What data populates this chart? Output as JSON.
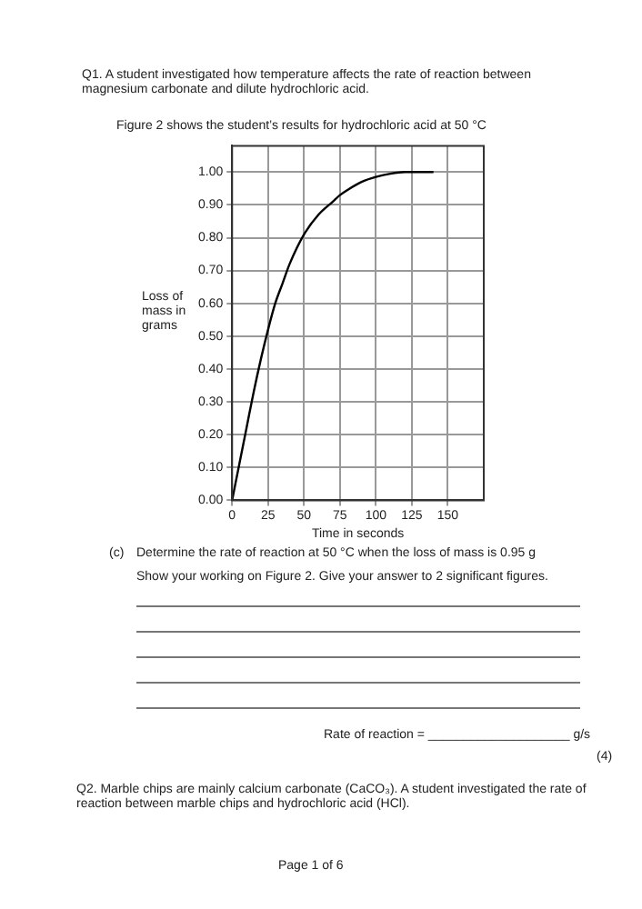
{
  "chart_data": {
    "type": "line",
    "title": "Figure 2 shows the student’s results for hydrochloric acid at 50 °C",
    "xlabel": "Time in seconds",
    "ylabel": "Loss of mass in grams",
    "x": [
      0,
      5,
      10,
      15,
      20,
      25,
      30,
      35,
      40,
      50,
      60,
      70,
      75,
      80,
      90,
      100,
      110,
      120,
      125,
      140
    ],
    "series": [
      {
        "color": "#000000",
        "values": [
          0,
          0.11,
          0.22,
          0.33,
          0.43,
          0.52,
          0.6,
          0.66,
          0.72,
          0.81,
          0.87,
          0.91,
          0.93,
          0.945,
          0.97,
          0.985,
          0.995,
          1.0,
          1.0,
          1.0
        ]
      }
    ],
    "xlim": [
      0,
      175
    ],
    "xticks": [
      0,
      25,
      50,
      75,
      100,
      125,
      150
    ],
    "ylim": [
      0,
      1.08
    ],
    "yticks": [
      {
        "value": 0,
        "label": "0.00"
      },
      {
        "value": 0.1,
        "label": "0.10"
      },
      {
        "value": 0.2,
        "label": "0.20"
      },
      {
        "value": 0.3,
        "label": "0.30"
      },
      {
        "value": 0.4,
        "label": "0.40"
      },
      {
        "value": 0.5,
        "label": "0.50"
      },
      {
        "value": 0.6,
        "label": "0.60"
      },
      {
        "value": 0.7,
        "label": "0.70"
      },
      {
        "value": 0.8,
        "label": "0.80"
      },
      {
        "value": 0.9,
        "label": "0.90"
      },
      {
        "value": 1,
        "label": "1.00"
      }
    ],
    "grid": true,
    "legend": false,
    "marker": "none",
    "line_style": "solid",
    "annotations": [
      "Q1. A student investigated how temperature affects the rate of reaction between magnesium carbonate and dilute hydrochloric acid.",
      "(c)",
      "Determine the rate of reaction at 50 °C when the loss of mass is 0.95 g",
      "Show your working on Figure 2. Give your answer to 2 significant figures.",
      "Rate of reaction = ____________________ g/s",
      "(4)",
      "Q2. Marble chips are mainly calcium carbonate (CaCO₃). A student investigated the rate of reaction between marble chips and hydrochloric acid (HCl).",
      "Page 1 of 6"
    ]
  }
}
